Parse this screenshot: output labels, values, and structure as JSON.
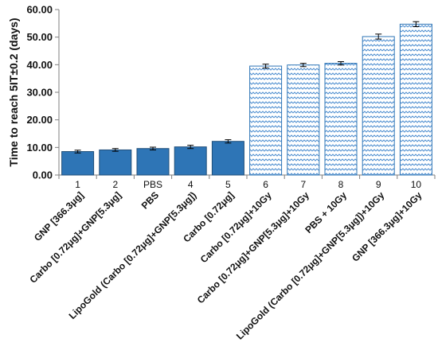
{
  "chart_data": {
    "type": "bar",
    "ylabel": "Time to reach 5IT±0.2 (days)",
    "ylim": [
      0,
      60
    ],
    "yticks": [
      "0.00",
      "10.00",
      "20.00",
      "30.00",
      "40.00",
      "50.00",
      "60.00"
    ],
    "grid": false,
    "category_numbers": [
      "1",
      "2",
      "PBS",
      "4",
      "5",
      "6",
      "7",
      "8",
      "9",
      "10"
    ],
    "categories": [
      "GNP [366.3μg]",
      "Carbo [0.72μg]+GNP[5.3μg]",
      "PBS",
      "LipoGold (Carbo [0.72μg]+GNP[5.3μg])",
      "Carbo [0.72μg]",
      "Carbo [0.72μg]+10Gy",
      "Carbo [0.72μg]+GNP[5.3μg]+10Gy",
      "PBS + 10Gy",
      "LipoGold (Carbo [0.72μg]+GNP[5.3μg])+10Gy",
      "GNP [366.3μg]+10Gy"
    ],
    "values": [
      8.5,
      9.1,
      9.6,
      10.2,
      12.2,
      39.5,
      39.9,
      40.5,
      50.2,
      54.7
    ],
    "errors": [
      0.5,
      0.5,
      0.5,
      0.6,
      0.6,
      0.7,
      0.6,
      0.6,
      0.9,
      0.9
    ],
    "fill_style": [
      "solid",
      "solid",
      "solid",
      "solid",
      "solid",
      "pattern",
      "pattern",
      "pattern",
      "pattern",
      "pattern"
    ],
    "colors": {
      "solid": "#2e75b6",
      "solid_edge": "#1f4e79",
      "pattern_line": "#4f8fd0",
      "pattern_edge": "#2e75b6",
      "axis": "#7f7f7f"
    }
  }
}
